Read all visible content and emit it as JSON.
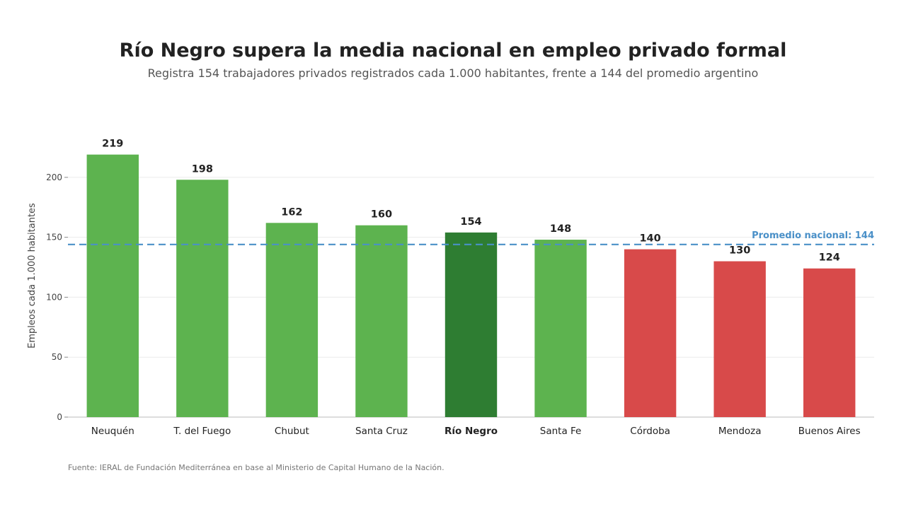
{
  "header": {
    "title": "Río Negro supera la media nacional en empleo privado formal",
    "subtitle": "Registra 154 trabajadores privados registrados cada 1.000 habitantes, frente a 144 del promedio argentino"
  },
  "footer": {
    "source": "Fuente: IERAL de Fundación Mediterránea en base al Ministerio de Capital Humano de la Nación."
  },
  "chart_data": {
    "type": "bar",
    "title": "Río Negro supera la media nacional en empleo privado formal",
    "subtitle": "Registra 154 trabajadores privados registrados cada 1.000 habitantes, frente a 144 del promedio argentino",
    "xlabel": "",
    "ylabel": "Empleos cada 1.000 habitantes",
    "categories": [
      "Neuquén",
      "T. del Fuego",
      "Chubut",
      "Santa Cruz",
      "Río Negro",
      "Santa Fe",
      "Córdoba",
      "Mendoza",
      "Buenos Aires"
    ],
    "values": [
      219,
      198,
      162,
      160,
      154,
      148,
      140,
      130,
      124
    ],
    "bar_colors": [
      "#5db34f",
      "#5db34f",
      "#5db34f",
      "#5db34f",
      "#2e7d32",
      "#5db34f",
      "#d84a4a",
      "#d84a4a",
      "#d84a4a"
    ],
    "highlight_category": "Río Negro",
    "highlight_color": "#2e7d32",
    "ylim": [
      0,
      230
    ],
    "yticks": [
      0,
      50,
      100,
      150,
      200
    ],
    "grid": "horizontal",
    "reference_line": {
      "value": 144,
      "label": "Promedio nacional: 144",
      "color": "#4a90c8",
      "style": "dashed"
    }
  }
}
